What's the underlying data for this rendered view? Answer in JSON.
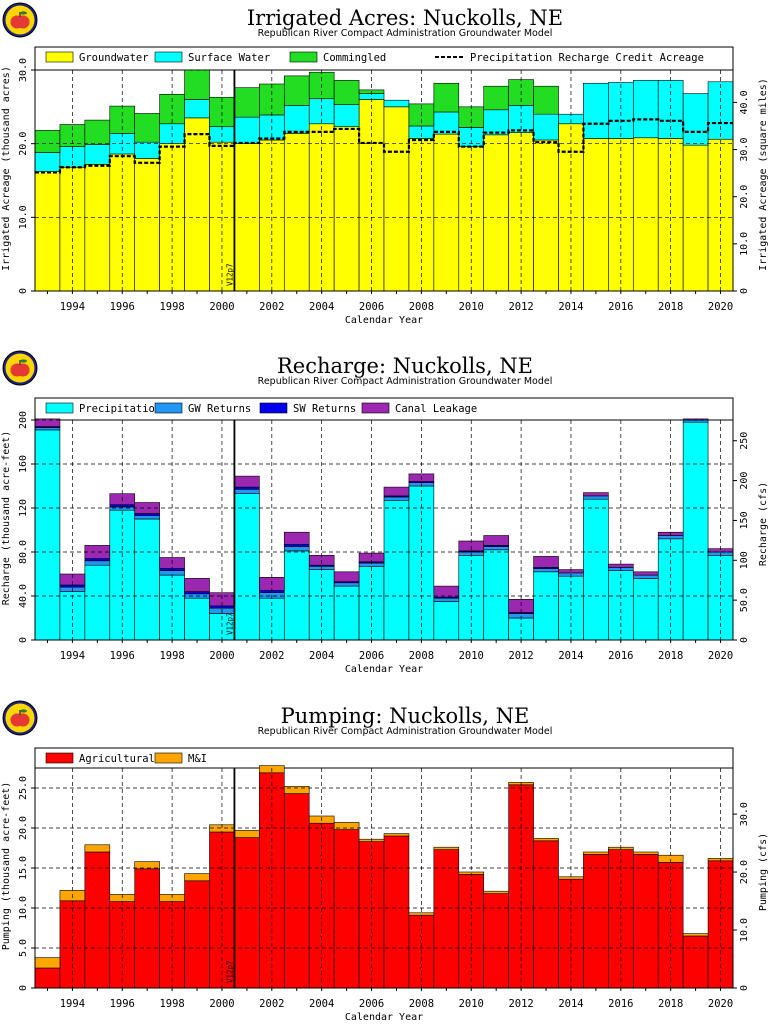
{
  "colors": {
    "groundwater": "#ffff00",
    "surface_water": "#00ffff",
    "commingled": "#22dd22",
    "gw_returns": "#2196f3",
    "sw_returns": "#0000ee",
    "canal_leakage": "#9c27b0",
    "agricultural": "#ff0000",
    "mi": "#ffa500"
  },
  "chart_data": [
    {
      "type": "area",
      "title": "Irrigated Acres: Nuckolls, NE",
      "subtitle": "Republican River Compact Administration Groundwater Model",
      "xlabel": "Calendar Year",
      "ylabel": "Irrigated Acreage (thousand acres)",
      "y2label": "Irrigated Acreage (square miles)",
      "annotation": "V12p7",
      "annotation_year": 2000.5,
      "x": [
        1993,
        1994,
        1995,
        1996,
        1997,
        1998,
        1999,
        2000,
        2001,
        2002,
        2003,
        2004,
        2005,
        2006,
        2007,
        2008,
        2009,
        2010,
        2011,
        2012,
        2013,
        2014,
        2015,
        2016,
        2017,
        2018,
        2019,
        2020
      ],
      "xticks": [
        "1994",
        "1996",
        "1998",
        "2000",
        "2002",
        "2004",
        "2006",
        "2008",
        "2010",
        "2012",
        "2014",
        "2016",
        "2018",
        "2020"
      ],
      "yticks": [
        "0",
        "10.0",
        "20.0",
        "30.0"
      ],
      "y2ticks": [
        "0",
        "10.0",
        "20.0",
        "30.0",
        "40.0"
      ],
      "ylim": [
        0,
        30
      ],
      "grid": true,
      "legend": "top",
      "series": [
        {
          "name": "Groundwater",
          "values": [
            16.2,
            16.8,
            17.2,
            18.6,
            18.0,
            20.0,
            23.5,
            20.2,
            20.0,
            20.5,
            21.4,
            22.7,
            22.3,
            26.0,
            25.0,
            20.7,
            21.3,
            19.6,
            21.2,
            21.5,
            20.5,
            22.7,
            20.7,
            20.7,
            20.8,
            20.7,
            19.8,
            20.6
          ]
        },
        {
          "name": "Surface Water",
          "values": [
            2.6,
            2.8,
            2.7,
            2.8,
            2.2,
            2.7,
            2.5,
            2.1,
            3.6,
            3.4,
            3.8,
            3.4,
            3.0,
            0.8,
            0.9,
            1.7,
            3.0,
            2.6,
            3.4,
            3.7,
            3.5,
            1.3,
            7.5,
            7.6,
            7.8,
            7.9,
            7.0,
            7.8
          ]
        },
        {
          "name": "Commingled",
          "values": [
            3.0,
            3.0,
            3.3,
            3.7,
            3.9,
            4.0,
            4.0,
            4.0,
            4.0,
            4.2,
            4.0,
            3.6,
            3.3,
            0.5,
            0.0,
            3.0,
            3.9,
            2.8,
            3.2,
            3.5,
            3.8,
            0.0,
            0.0,
            0.0,
            0.0,
            0.0,
            0.0,
            0.0
          ]
        },
        {
          "name": "Precipitation Recharge Credit Acreage",
          "values": [
            16.1,
            16.8,
            17.0,
            18.3,
            17.4,
            19.6,
            21.3,
            19.7,
            20.1,
            20.7,
            21.6,
            21.6,
            22.0,
            20.1,
            18.9,
            20.5,
            21.6,
            19.6,
            21.5,
            21.8,
            20.2,
            18.9,
            22.7,
            23.1,
            23.3,
            23.1,
            21.6,
            22.8
          ]
        }
      ]
    },
    {
      "type": "area",
      "title": "Recharge: Nuckolls, NE",
      "subtitle": "Republican River Compact Administration Groundwater Model",
      "xlabel": "Calendar Year",
      "ylabel": "Recharge (thousand acre-feet)",
      "y2label": "Recharge (cfs)",
      "annotation": "V12p7",
      "annotation_year": 2000.5,
      "x": [
        1993,
        1994,
        1995,
        1996,
        1997,
        1998,
        1999,
        2000,
        2001,
        2002,
        2003,
        2004,
        2005,
        2006,
        2007,
        2008,
        2009,
        2010,
        2011,
        2012,
        2013,
        2014,
        2015,
        2016,
        2017,
        2018,
        2019,
        2020
      ],
      "xticks": [
        "1994",
        "1996",
        "1998",
        "2000",
        "2002",
        "2004",
        "2006",
        "2008",
        "2010",
        "2012",
        "2014",
        "2016",
        "2018",
        "2020"
      ],
      "yticks": [
        "0",
        "40.0",
        "80.0",
        "120",
        "160",
        "200"
      ],
      "y2ticks": [
        "0",
        "50.0",
        "100",
        "150",
        "200",
        "250"
      ],
      "ylim": [
        0,
        200
      ],
      "grid": true,
      "legend": "top",
      "series": [
        {
          "name": "Precipitation",
          "values": [
            191,
            44,
            68,
            118,
            110,
            59,
            38,
            24,
            133,
            38,
            81,
            64,
            49,
            67,
            127,
            140,
            35,
            77,
            82,
            20,
            62,
            58,
            128,
            63,
            56,
            92,
            198,
            77
          ]
        },
        {
          "name": "GW Returns",
          "values": [
            2,
            4,
            4,
            3,
            3,
            4,
            4,
            5,
            4,
            5,
            4,
            3,
            3,
            3,
            3,
            3,
            3,
            3,
            3,
            4,
            3,
            3,
            3,
            3,
            3,
            3,
            2,
            3
          ]
        },
        {
          "name": "SW Returns",
          "values": [
            1,
            2,
            2,
            2,
            2,
            2,
            2,
            2,
            2,
            2,
            2,
            1,
            1,
            1,
            1,
            1,
            1,
            1,
            1,
            1,
            1,
            0,
            0,
            0,
            0,
            0,
            0,
            0
          ]
        },
        {
          "name": "Canal Leakage",
          "values": [
            7,
            10,
            12,
            10,
            10,
            10,
            12,
            12,
            10,
            12,
            11,
            9,
            9,
            8,
            8,
            7,
            10,
            9,
            9,
            12,
            10,
            3,
            3,
            3,
            3,
            3,
            1,
            3
          ]
        }
      ]
    },
    {
      "type": "area",
      "title": "Pumping: Nuckolls, NE",
      "subtitle": "Republican River Compact Administration Groundwater Model",
      "xlabel": "Calendar Year",
      "ylabel": "Pumping (thousand acre-feet)",
      "y2label": "Pumping (cfs)",
      "annotation": "V12p7",
      "annotation_year": 2000.5,
      "x": [
        1993,
        1994,
        1995,
        1996,
        1997,
        1998,
        1999,
        2000,
        2001,
        2002,
        2003,
        2004,
        2005,
        2006,
        2007,
        2008,
        2009,
        2010,
        2011,
        2012,
        2013,
        2014,
        2015,
        2016,
        2017,
        2018,
        2019,
        2020
      ],
      "xticks": [
        "1994",
        "1996",
        "1998",
        "2000",
        "2002",
        "2004",
        "2006",
        "2008",
        "2010",
        "2012",
        "2014",
        "2016",
        "2018",
        "2020"
      ],
      "yticks": [
        "0",
        "5.0",
        "10.0",
        "15.0",
        "20.0",
        "25.0"
      ],
      "y2ticks": [
        "0",
        "10.0",
        "20.0",
        "30.0"
      ],
      "ylim": [
        0,
        27.5
      ],
      "grid": true,
      "legend": "top",
      "series": [
        {
          "name": "Agricultural",
          "values": [
            2.5,
            10.9,
            17.0,
            10.8,
            14.9,
            10.8,
            13.4,
            19.5,
            18.8,
            26.9,
            24.3,
            20.6,
            19.8,
            18.3,
            19.0,
            9.1,
            17.3,
            14.2,
            11.8,
            25.4,
            18.4,
            13.6,
            16.7,
            17.3,
            16.7,
            15.7,
            6.5,
            15.9
          ]
        },
        {
          "name": "M&I",
          "values": [
            1.3,
            1.3,
            0.9,
            0.9,
            0.9,
            0.9,
            0.9,
            0.9,
            0.9,
            0.9,
            0.9,
            0.9,
            0.9,
            0.3,
            0.3,
            0.3,
            0.3,
            0.3,
            0.3,
            0.3,
            0.3,
            0.3,
            0.3,
            0.3,
            0.3,
            0.9,
            0.3,
            0.3
          ]
        }
      ]
    }
  ]
}
